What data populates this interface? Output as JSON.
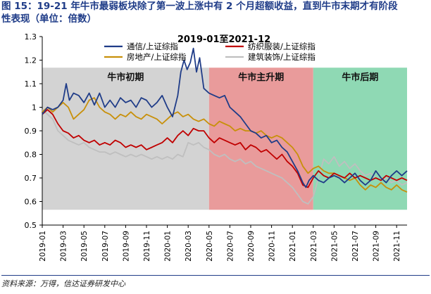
{
  "heading": {
    "line1": "图 15：19-21 年牛市最弱板块除了第一波上涨中有 2 个月超额收益，直到牛市末期才有阶段",
    "line2": "性表现（单位：倍数）"
  },
  "source": "资料来源：万得，信达证券研发中心",
  "chart_data": {
    "type": "line",
    "title": "2019-01至2021-12",
    "ylim": [
      0.5,
      1.3
    ],
    "yticks": [
      "0.5",
      "0.6",
      "0.7",
      "0.8",
      "0.9",
      "1",
      "1.1",
      "1.2",
      "1.3"
    ],
    "x_start": "2019-01",
    "x_end": "2021-12",
    "xticks": [
      "2019-01",
      "2019-03",
      "2019-05",
      "2019-07",
      "2019-09",
      "2019-11",
      "2020-01",
      "2020-03",
      "2020-05",
      "2020-07",
      "2020-09",
      "2020-11",
      "2021-01",
      "2021-03",
      "2021-05",
      "2021-07",
      "2021-09",
      "2021-11"
    ],
    "phases": [
      {
        "label": "牛市初期",
        "start": 0.0,
        "end": 16.0,
        "color": "#d3d3d3"
      },
      {
        "label": "牛市主升期",
        "start": 16.0,
        "end": 26.0,
        "color": "#e99b9b"
      },
      {
        "label": "牛市后期",
        "start": 26.0,
        "end": 35.0,
        "color": "#8fd9b4"
      }
    ],
    "series": [
      {
        "name": "通信/上证综指",
        "color": "#1f3c88",
        "points": [
          [
            0,
            0.97
          ],
          [
            0.5,
            1.0
          ],
          [
            1,
            0.99
          ],
          [
            1.5,
            1.0
          ],
          [
            2,
            1.03
          ],
          [
            2.3,
            1.1
          ],
          [
            2.6,
            1.03
          ],
          [
            3,
            1.06
          ],
          [
            3.5,
            1.05
          ],
          [
            4,
            1.02
          ],
          [
            4.5,
            1.06
          ],
          [
            5,
            1.01
          ],
          [
            5.5,
            1.06
          ],
          [
            6,
            1.0
          ],
          [
            6.5,
            1.03
          ],
          [
            7,
            1.0
          ],
          [
            7.5,
            1.04
          ],
          [
            8,
            1.02
          ],
          [
            8.5,
            1.03
          ],
          [
            9,
            1.0
          ],
          [
            9.5,
            1.04
          ],
          [
            10,
            1.03
          ],
          [
            10.5,
            1.0
          ],
          [
            11,
            1.02
          ],
          [
            11.5,
            1.05
          ],
          [
            12,
            1.0
          ],
          [
            12.5,
            0.96
          ],
          [
            13,
            1.05
          ],
          [
            13.3,
            1.15
          ],
          [
            13.6,
            1.2
          ],
          [
            13.9,
            1.16
          ],
          [
            14.2,
            1.19
          ],
          [
            14.5,
            1.25
          ],
          [
            14.8,
            1.15
          ],
          [
            15.1,
            1.21
          ],
          [
            15.5,
            1.08
          ],
          [
            16,
            1.06
          ],
          [
            16.5,
            1.05
          ],
          [
            17,
            1.04
          ],
          [
            17.5,
            1.05
          ],
          [
            18,
            1.0
          ],
          [
            18.5,
            0.98
          ],
          [
            19,
            0.96
          ],
          [
            19.5,
            0.93
          ],
          [
            20,
            0.9
          ],
          [
            20.5,
            0.89
          ],
          [
            21,
            0.87
          ],
          [
            21.5,
            0.88
          ],
          [
            22,
            0.85
          ],
          [
            22.5,
            0.86
          ],
          [
            23,
            0.83
          ],
          [
            23.5,
            0.81
          ],
          [
            24,
            0.77
          ],
          [
            24.5,
            0.73
          ],
          [
            25,
            0.68
          ],
          [
            25.3,
            0.66
          ],
          [
            25.6,
            0.69
          ],
          [
            26,
            0.71
          ],
          [
            26.5,
            0.69
          ],
          [
            27,
            0.68
          ],
          [
            27.5,
            0.7
          ],
          [
            28,
            0.71
          ],
          [
            28.5,
            0.7
          ],
          [
            29,
            0.68
          ],
          [
            29.5,
            0.7
          ],
          [
            30,
            0.72
          ],
          [
            30.5,
            0.69
          ],
          [
            31,
            0.67
          ],
          [
            31.5,
            0.69
          ],
          [
            32,
            0.73
          ],
          [
            32.5,
            0.7
          ],
          [
            33,
            0.68
          ],
          [
            33.5,
            0.71
          ],
          [
            34,
            0.73
          ],
          [
            34.5,
            0.71
          ],
          [
            35,
            0.73
          ]
        ]
      },
      {
        "name": "纺织服装/上证综指",
        "color": "#c00000",
        "points": [
          [
            0,
            0.97
          ],
          [
            0.5,
            0.99
          ],
          [
            1,
            0.97
          ],
          [
            1.5,
            0.93
          ],
          [
            2,
            0.9
          ],
          [
            2.5,
            0.89
          ],
          [
            3,
            0.87
          ],
          [
            3.5,
            0.88
          ],
          [
            4,
            0.86
          ],
          [
            4.5,
            0.85
          ],
          [
            5,
            0.86
          ],
          [
            5.5,
            0.84
          ],
          [
            6,
            0.85
          ],
          [
            6.5,
            0.84
          ],
          [
            7,
            0.86
          ],
          [
            7.5,
            0.85
          ],
          [
            8,
            0.83
          ],
          [
            8.5,
            0.84
          ],
          [
            9,
            0.83
          ],
          [
            9.5,
            0.84
          ],
          [
            10,
            0.82
          ],
          [
            10.5,
            0.83
          ],
          [
            11,
            0.84
          ],
          [
            11.5,
            0.85
          ],
          [
            12,
            0.87
          ],
          [
            12.5,
            0.85
          ],
          [
            13,
            0.88
          ],
          [
            13.5,
            0.9
          ],
          [
            14,
            0.88
          ],
          [
            14.5,
            0.91
          ],
          [
            15,
            0.9
          ],
          [
            15.5,
            0.9
          ],
          [
            16,
            0.87
          ],
          [
            16.5,
            0.85
          ],
          [
            17,
            0.87
          ],
          [
            17.5,
            0.86
          ],
          [
            18,
            0.85
          ],
          [
            18.5,
            0.84
          ],
          [
            19,
            0.85
          ],
          [
            19.5,
            0.82
          ],
          [
            20,
            0.84
          ],
          [
            20.5,
            0.83
          ],
          [
            21,
            0.81
          ],
          [
            21.5,
            0.82
          ],
          [
            22,
            0.8
          ],
          [
            22.5,
            0.78
          ],
          [
            23,
            0.8
          ],
          [
            23.5,
            0.77
          ],
          [
            24,
            0.75
          ],
          [
            24.5,
            0.72
          ],
          [
            25,
            0.67
          ],
          [
            25.5,
            0.66
          ],
          [
            26,
            0.7
          ],
          [
            26.5,
            0.73
          ],
          [
            27,
            0.71
          ],
          [
            27.5,
            0.7
          ],
          [
            28,
            0.72
          ],
          [
            28.5,
            0.71
          ],
          [
            29,
            0.7
          ],
          [
            29.5,
            0.72
          ],
          [
            30,
            0.7
          ],
          [
            30.5,
            0.71
          ],
          [
            31,
            0.7
          ],
          [
            31.5,
            0.69
          ],
          [
            32,
            0.7
          ],
          [
            32.5,
            0.69
          ],
          [
            33,
            0.71
          ],
          [
            33.5,
            0.7
          ],
          [
            34,
            0.69
          ],
          [
            34.5,
            0.7
          ],
          [
            35,
            0.69
          ]
        ]
      },
      {
        "name": "房地产/上证综指",
        "color": "#c8900a",
        "points": [
          [
            0,
            0.98
          ],
          [
            0.5,
            1.0
          ],
          [
            1,
            0.98
          ],
          [
            1.5,
            1.0
          ],
          [
            2,
            1.02
          ],
          [
            2.5,
            1.0
          ],
          [
            3,
            0.95
          ],
          [
            3.5,
            0.97
          ],
          [
            4,
            0.99
          ],
          [
            4.5,
            1.03
          ],
          [
            5,
            1.04
          ],
          [
            5.5,
            1.0
          ],
          [
            6,
            0.98
          ],
          [
            6.5,
            0.97
          ],
          [
            7,
            0.95
          ],
          [
            7.5,
            0.97
          ],
          [
            8,
            0.96
          ],
          [
            8.5,
            0.98
          ],
          [
            9,
            0.96
          ],
          [
            9.5,
            0.95
          ],
          [
            10,
            0.97
          ],
          [
            10.5,
            0.96
          ],
          [
            11,
            0.95
          ],
          [
            11.5,
            0.93
          ],
          [
            12,
            0.95
          ],
          [
            12.5,
            0.97
          ],
          [
            13,
            0.98
          ],
          [
            13.5,
            0.96
          ],
          [
            14,
            0.97
          ],
          [
            14.5,
            0.95
          ],
          [
            15,
            0.94
          ],
          [
            15.5,
            0.95
          ],
          [
            16,
            0.93
          ],
          [
            16.5,
            0.92
          ],
          [
            17,
            0.94
          ],
          [
            17.5,
            0.93
          ],
          [
            18,
            0.92
          ],
          [
            18.5,
            0.9
          ],
          [
            19,
            0.91
          ],
          [
            19.5,
            0.9
          ],
          [
            20,
            0.9
          ],
          [
            20.5,
            0.89
          ],
          [
            21,
            0.9
          ],
          [
            21.5,
            0.88
          ],
          [
            22,
            0.87
          ],
          [
            22.5,
            0.88
          ],
          [
            23,
            0.87
          ],
          [
            23.5,
            0.85
          ],
          [
            24,
            0.83
          ],
          [
            24.5,
            0.8
          ],
          [
            25,
            0.75
          ],
          [
            25.5,
            0.72
          ],
          [
            26,
            0.74
          ],
          [
            26.5,
            0.75
          ],
          [
            27,
            0.73
          ],
          [
            27.5,
            0.72
          ],
          [
            28,
            0.72
          ],
          [
            28.5,
            0.71
          ],
          [
            29,
            0.7
          ],
          [
            29.5,
            0.69
          ],
          [
            30,
            0.7
          ],
          [
            30.5,
            0.67
          ],
          [
            31,
            0.65
          ],
          [
            31.5,
            0.67
          ],
          [
            32,
            0.66
          ],
          [
            32.5,
            0.68
          ],
          [
            33,
            0.66
          ],
          [
            33.5,
            0.65
          ],
          [
            34,
            0.67
          ],
          [
            34.5,
            0.65
          ],
          [
            35,
            0.64
          ]
        ]
      },
      {
        "name": "建筑装饰/上证综指",
        "color": "#bfbfbf",
        "points": [
          [
            0,
            0.99
          ],
          [
            0.5,
            0.97
          ],
          [
            1,
            0.95
          ],
          [
            1.5,
            0.9
          ],
          [
            2,
            0.88
          ],
          [
            2.5,
            0.86
          ],
          [
            3,
            0.85
          ],
          [
            3.5,
            0.84
          ],
          [
            4,
            0.85
          ],
          [
            4.5,
            0.83
          ],
          [
            5,
            0.82
          ],
          [
            5.5,
            0.81
          ],
          [
            6,
            0.81
          ],
          [
            6.5,
            0.8
          ],
          [
            7,
            0.81
          ],
          [
            7.5,
            0.8
          ],
          [
            8,
            0.79
          ],
          [
            8.5,
            0.8
          ],
          [
            9,
            0.79
          ],
          [
            9.5,
            0.8
          ],
          [
            10,
            0.79
          ],
          [
            10.5,
            0.78
          ],
          [
            11,
            0.79
          ],
          [
            11.5,
            0.78
          ],
          [
            12,
            0.79
          ],
          [
            12.5,
            0.78
          ],
          [
            13,
            0.8
          ],
          [
            13.5,
            0.79
          ],
          [
            14,
            0.85
          ],
          [
            14.5,
            0.84
          ],
          [
            15,
            0.85
          ],
          [
            15.5,
            0.83
          ],
          [
            16,
            0.82
          ],
          [
            16.5,
            0.8
          ],
          [
            17,
            0.79
          ],
          [
            17.5,
            0.8
          ],
          [
            18,
            0.78
          ],
          [
            18.5,
            0.77
          ],
          [
            19,
            0.78
          ],
          [
            19.5,
            0.76
          ],
          [
            20,
            0.77
          ],
          [
            20.5,
            0.75
          ],
          [
            21,
            0.74
          ],
          [
            21.5,
            0.73
          ],
          [
            22,
            0.72
          ],
          [
            22.5,
            0.71
          ],
          [
            23,
            0.7
          ],
          [
            23.5,
            0.68
          ],
          [
            24,
            0.66
          ],
          [
            24.5,
            0.63
          ],
          [
            25,
            0.6
          ],
          [
            25.5,
            0.59
          ],
          [
            26,
            0.62
          ],
          [
            26.5,
            0.7
          ],
          [
            27,
            0.78
          ],
          [
            27.5,
            0.76
          ],
          [
            28,
            0.79
          ],
          [
            28.5,
            0.75
          ],
          [
            29,
            0.77
          ],
          [
            29.5,
            0.74
          ],
          [
            30,
            0.76
          ],
          [
            30.5,
            0.73
          ],
          [
            31,
            0.71
          ],
          [
            31.5,
            0.72
          ],
          [
            32,
            0.7
          ],
          [
            32.5,
            0.69
          ],
          [
            33,
            0.7
          ],
          [
            33.5,
            0.68
          ],
          [
            34,
            0.69
          ],
          [
            34.5,
            0.67
          ],
          [
            35,
            0.68
          ]
        ]
      }
    ]
  }
}
